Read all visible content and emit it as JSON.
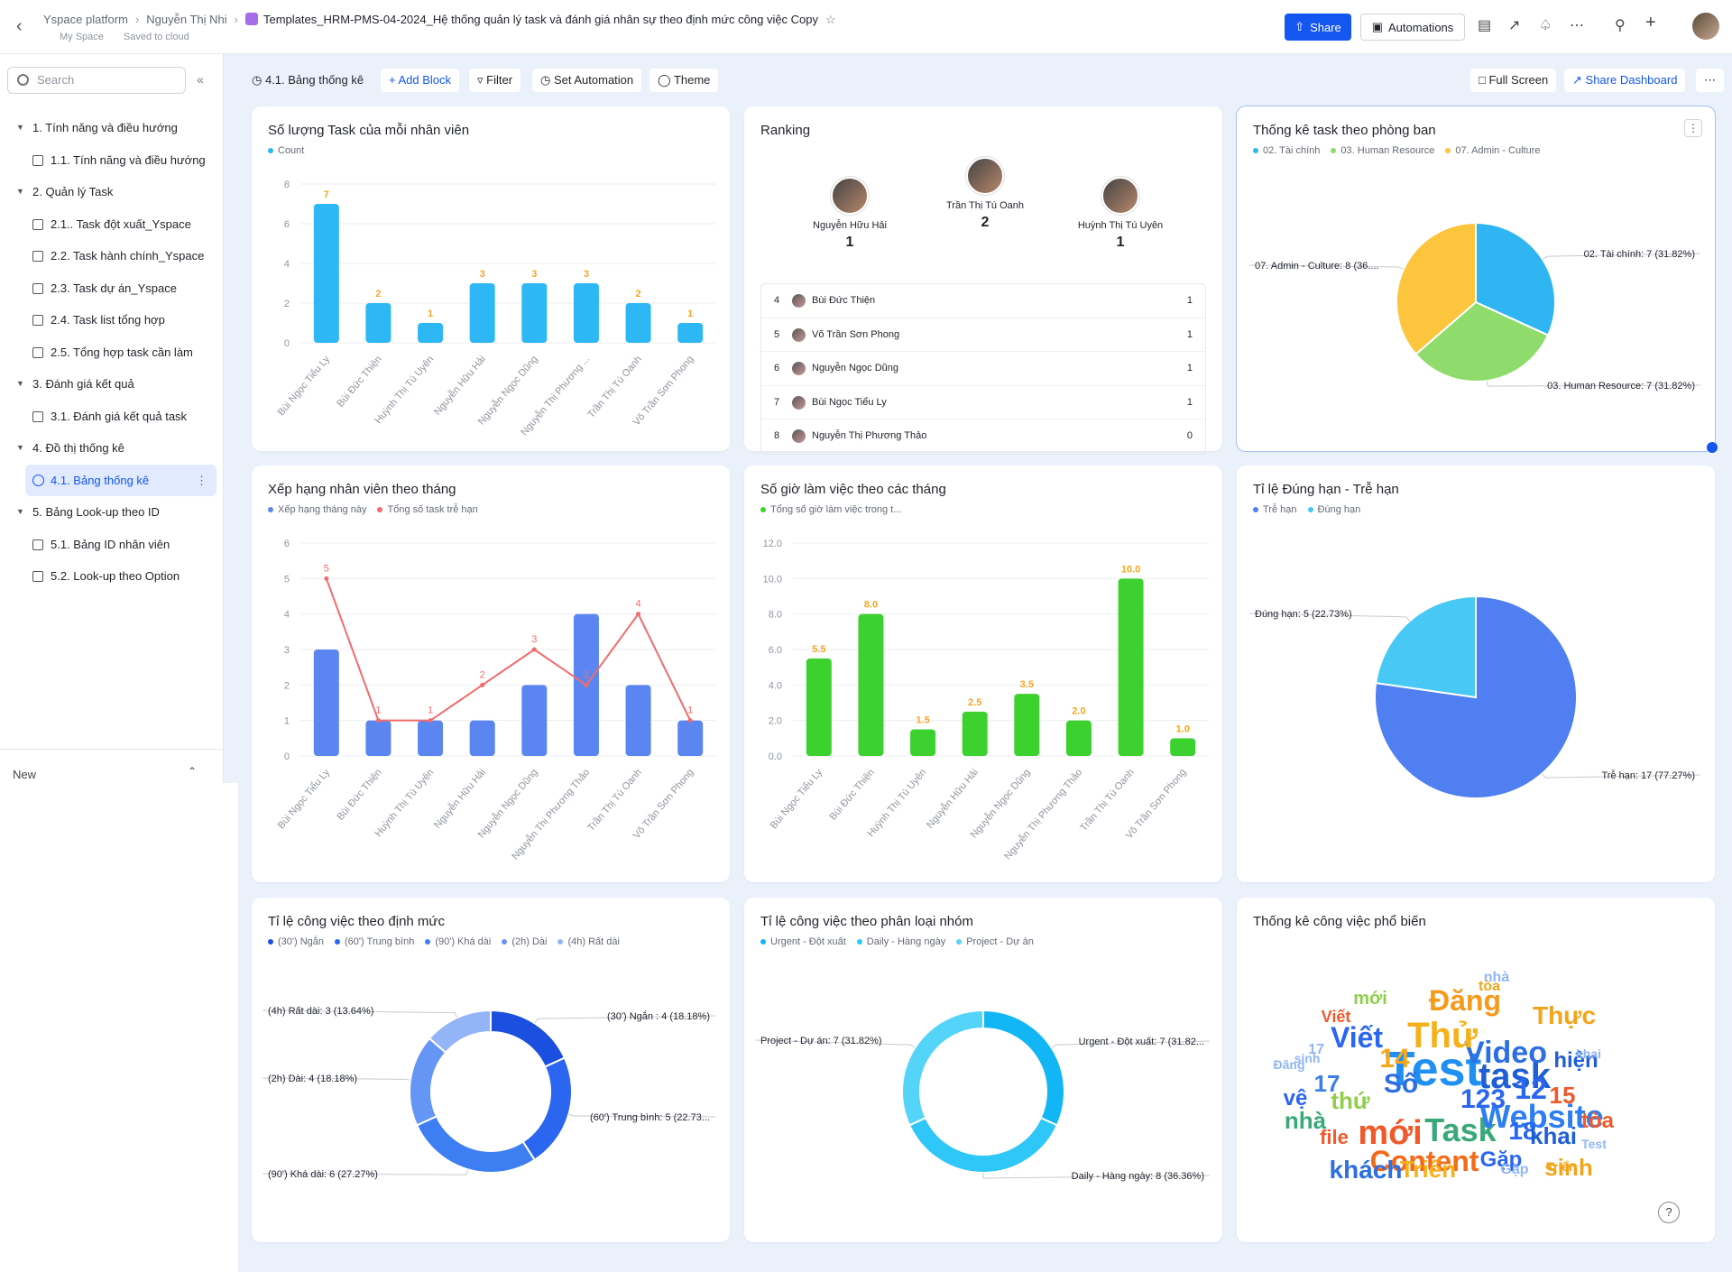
{
  "topbar": {
    "breadcrumb": [
      "Yspace platform",
      "Nguyễn Thị Nhi"
    ],
    "doc_title": "Templates_HRM-PMS-04-2024_Hệ thống quản lý task và đánh giá nhân sự theo định mức công việc Copy",
    "workspace": "My Space",
    "save_status": "Saved to cloud",
    "share_label": "Share",
    "automations_label": "Automations",
    "icons": [
      "back-icon",
      "star-icon",
      "share-icon",
      "robot-icon",
      "table-icon",
      "open-icon",
      "bell-icon",
      "more-icon",
      "search-icon",
      "plus-icon"
    ]
  },
  "sidebar": {
    "search_placeholder": "Search",
    "items": [
      {
        "label": "1. Tính năng và điều hướng",
        "type": "group"
      },
      {
        "label": "1.1. Tính năng và điều hướng",
        "type": "leaf"
      },
      {
        "label": "2. Quản lý Task",
        "type": "group"
      },
      {
        "label": "2.1.. Task đột xuất_Yspace",
        "type": "leaf"
      },
      {
        "label": "2.2. Task hành chính_Yspace",
        "type": "leaf"
      },
      {
        "label": "2.3. Task dự án_Yspace",
        "type": "leaf"
      },
      {
        "label": "2.4. Task list tổng hợp",
        "type": "leaf"
      },
      {
        "label": "2.5. Tổng hợp task cần làm",
        "type": "leaf"
      },
      {
        "label": "3. Đánh giá kết quả",
        "type": "group"
      },
      {
        "label": "3.1. Đánh giá kết quả task",
        "type": "leaf"
      },
      {
        "label": "4. Đồ thị thống kê",
        "type": "group"
      },
      {
        "label": "4.1. Bảng thống kê",
        "type": "active"
      },
      {
        "label": "5. Bảng Look-up theo ID",
        "type": "group"
      },
      {
        "label": "5.1. Bảng ID nhân viên",
        "type": "leaf"
      },
      {
        "label": "5.2. Look-up theo Option",
        "type": "leaf"
      }
    ],
    "new_label": "New"
  },
  "dashboard": {
    "title": "4.1. Bảng thống kê",
    "add_block": "+ Add Block",
    "filter": "Filter",
    "set_automation": "Set Automation",
    "theme": "Theme",
    "full_screen": "Full Screen",
    "share_dashboard": "Share Dashboard"
  },
  "colors": {
    "accent": "#1456f0",
    "bar_blue": "#2db7f5",
    "bar_indigo": "#5b86f2",
    "line_red": "#f26b6b",
    "bar_green": "#3cd12e",
    "label_orange": "#f5a623"
  },
  "cards": {
    "task_count": {
      "title": "Số lượng Task của mỗi nhân viên",
      "legend": "Count"
    },
    "ranking": {
      "title": "Ranking"
    },
    "dept": {
      "title": "Thống kê task theo phòng ban",
      "legend": [
        "02. Tài chính",
        "03. Human Resource",
        "07. Admin - Culture"
      ]
    },
    "monthly_rank": {
      "title": "Xếp hạng nhân viên theo tháng",
      "legend": [
        "Xếp hạng tháng này",
        "Tổng số task trễ hạn"
      ]
    },
    "hours": {
      "title": "Số giờ làm việc theo các tháng",
      "legend": "Tổng số giờ làm việc trong t..."
    },
    "ontime": {
      "title": "Tỉ lệ Đúng hạn - Trễ hạn",
      "legend": [
        "Trễ hạn",
        "Đúng hạn"
      ]
    },
    "norm": {
      "title": "Tỉ lệ công việc theo định mức",
      "legend": [
        "(30') Ngắn",
        "(60') Trung bình",
        "(90') Khá dài",
        "(2h) Dài",
        "(4h) Rất dài"
      ]
    },
    "group": {
      "title": "Tỉ lệ công việc theo phân loại nhóm",
      "legend": [
        "Urgent - Đột xuất",
        "Daily - Hàng ngày",
        "Project - Dự án"
      ]
    },
    "wordcloud": {
      "title": "Thống kê công việc phổ biến"
    }
  },
  "ranking": {
    "top": [
      {
        "rank": 2,
        "name": "Nguyễn Hữu Hải",
        "value": "1"
      },
      {
        "rank": 1,
        "name": "Trần Thị Tú Oanh",
        "value": "2"
      },
      {
        "rank": 3,
        "name": "Huỳnh Thị Tú Uyên",
        "value": "1"
      }
    ],
    "list": [
      {
        "rank": "4",
        "name": "Bùi Đức Thiện",
        "value": "1"
      },
      {
        "rank": "5",
        "name": "Võ Trần Sơn Phong",
        "value": "1"
      },
      {
        "rank": "6",
        "name": "Nguyễn Ngọc Dũng",
        "value": "1"
      },
      {
        "rank": "7",
        "name": "Bùi Ngọc Tiểu Ly",
        "value": "1"
      },
      {
        "rank": "8",
        "name": "Nguyễn Thị Phương Thảo",
        "value": "0"
      }
    ]
  },
  "chart_data": [
    {
      "type": "bar",
      "title": "Số lượng Task của mỗi nhân viên",
      "categories": [
        "Bùi Ngọc Tiểu Ly",
        "Bùi Đức Thiện",
        "Huỳnh Thị Tú Uyên",
        "Nguyễn Hữu Hải",
        "Nguyễn Ngọc Dũng",
        "Nguyễn Thị Phương ...",
        "Trần Thị Tú Oanh",
        "Võ Trần Sơn Phong"
      ],
      "series": [
        {
          "name": "Count",
          "values": [
            7,
            2,
            1,
            3,
            3,
            3,
            2,
            1
          ]
        }
      ],
      "ylim": [
        0,
        8
      ],
      "yticks": [
        "0",
        "2",
        "4",
        "6",
        "8"
      ]
    },
    {
      "type": "pie",
      "title": "Thống kê task theo phòng ban",
      "slices": [
        {
          "label": "02. Tài chính: 7 (31.82%)",
          "value": 7
        },
        {
          "label": "03. Human Resource: 7 (31.82%)",
          "value": 7
        },
        {
          "label": "07. Admin - Culture: 8 (36....",
          "value": 8
        }
      ]
    },
    {
      "type": "bar+line",
      "title": "Xếp hạng nhân viên theo tháng",
      "categories": [
        "Bùi Ngọc Tiểu Ly",
        "Bùi Đức Thiện",
        "Huỳnh Thị Tú Uyên",
        "Nguyễn Hữu Hải",
        "Nguyễn Ngọc Dũng",
        "Nguyễn Thị Phương Thảo",
        "Trần Thị Tú Oanh",
        "Võ Trần Sơn Phong"
      ],
      "series": [
        {
          "name": "Xếp hạng tháng này",
          "type": "bar",
          "values": [
            3,
            1,
            1,
            1,
            2,
            4,
            2,
            1
          ]
        },
        {
          "name": "Tổng số task trễ hạn",
          "type": "line",
          "values": [
            5,
            1,
            1,
            2,
            3,
            2,
            4,
            1
          ]
        }
      ],
      "ylim": [
        0,
        6
      ],
      "yticks": [
        "0",
        "1",
        "2",
        "3",
        "4",
        "5",
        "6"
      ]
    },
    {
      "type": "bar",
      "title": "Số giờ làm việc theo các tháng",
      "categories": [
        "Bùi Ngọc Tiểu Ly",
        "Bùi Đức Thiện",
        "Huỳnh Thị Tú Uyên",
        "Nguyễn Hữu Hải",
        "Nguyễn Ngọc Dũng",
        "Nguyễn Thị Phương Thảo",
        "Trần Thị Tú Oanh",
        "Võ Trần Sơn Phong"
      ],
      "series": [
        {
          "name": "Tổng số giờ làm việc trong t...",
          "values": [
            5.5,
            8.0,
            1.5,
            2.5,
            3.5,
            2.0,
            10.0,
            1.0
          ],
          "labels": [
            "5.5",
            "8.0",
            "1.5",
            "2.5",
            "3.5",
            "2.0",
            "10.0",
            "1.0"
          ]
        }
      ],
      "ylim": [
        0,
        12
      ],
      "yticks": [
        "0.0",
        "2.0",
        "4.0",
        "6.0",
        "8.0",
        "10.0",
        "12.0"
      ]
    },
    {
      "type": "pie",
      "title": "Tỉ lệ Đúng hạn - Trễ hạn",
      "slices": [
        {
          "label": "Trễ hạn: 17 (77.27%)",
          "value": 17
        },
        {
          "label": "Đúng hạn: 5 (22.73%)",
          "value": 5
        }
      ]
    },
    {
      "type": "donut",
      "title": "Tỉ lệ công việc theo định mức",
      "slices": [
        {
          "label": "(30') Ngắn : 4 (18.18%)",
          "value": 4
        },
        {
          "label": "(60') Trung bình: 5 (22.73...",
          "value": 5
        },
        {
          "label": "(90') Khá dài: 6 (27.27%)",
          "value": 6
        },
        {
          "label": "(2h) Dài: 4 (18.18%)",
          "value": 4
        },
        {
          "label": "(4h) Rất dài: 3 (13.64%)",
          "value": 3
        }
      ]
    },
    {
      "type": "donut",
      "title": "Tỉ lệ công việc theo phân loại nhóm",
      "slices": [
        {
          "label": "Urgent - Đột xuất: 7 (31.82...",
          "value": 7
        },
        {
          "label": "Daily - Hàng ngày: 8 (36.36%)",
          "value": 8
        },
        {
          "label": "Project - Dự án: 7 (31.82%)",
          "value": 7
        }
      ]
    }
  ],
  "wordcloud": {
    "words": [
      "Test",
      "task",
      "Task",
      "mới",
      "Website",
      "Content",
      "Video",
      "Thử",
      "Đăng",
      "Viết",
      "Thực",
      "Số",
      "14",
      "12",
      "15",
      "123",
      "18",
      "17",
      "khai",
      "hiện",
      "tòa",
      "nhà",
      "sinh",
      "khách",
      "Triển",
      "Gặp",
      "file",
      "vệ",
      "thứ",
      "Viết",
      "mới",
      "Đăng",
      "Gặp",
      "nhà",
      "tòa",
      "17",
      "Test",
      "khai",
      "Triển",
      "sinh"
    ]
  }
}
